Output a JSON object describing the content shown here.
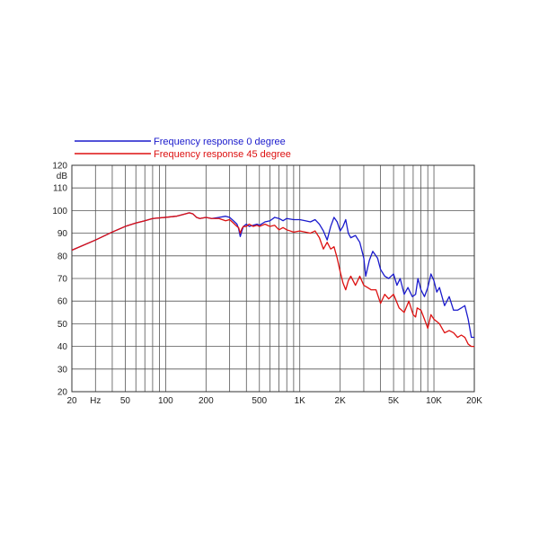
{
  "chart_data": {
    "type": "line",
    "ylabel": "dB",
    "xscale": "log",
    "xlim": [
      20,
      20000
    ],
    "ylim": [
      20,
      120
    ],
    "y_ticks": [
      20,
      30,
      40,
      50,
      60,
      70,
      80,
      90,
      100,
      110,
      120
    ],
    "x_tick_labels": [
      {
        "value": 20,
        "label": "20"
      },
      {
        "value": 30,
        "label": "Hz"
      },
      {
        "value": 50,
        "label": "50"
      },
      {
        "value": 100,
        "label": "100"
      },
      {
        "value": 200,
        "label": "200"
      },
      {
        "value": 500,
        "label": "500"
      },
      {
        "value": 1000,
        "label": "1K"
      },
      {
        "value": 2000,
        "label": "2K"
      },
      {
        "value": 5000,
        "label": "5K"
      },
      {
        "value": 10000,
        "label": "10K"
      },
      {
        "value": 20000,
        "label": "20K"
      }
    ],
    "grid": true,
    "legend_position": "top-left",
    "series": [
      {
        "name": "Frequency response 0 degree",
        "color": "#1a1acc",
        "points": [
          [
            20,
            82.5
          ],
          [
            30,
            87
          ],
          [
            40,
            90.5
          ],
          [
            50,
            93
          ],
          [
            60,
            94.5
          ],
          [
            70,
            95.5
          ],
          [
            80,
            96.5
          ],
          [
            100,
            97
          ],
          [
            120,
            97.5
          ],
          [
            140,
            98.5
          ],
          [
            150,
            99
          ],
          [
            160,
            98.5
          ],
          [
            170,
            97
          ],
          [
            180,
            96.5
          ],
          [
            200,
            97
          ],
          [
            220,
            96.5
          ],
          [
            250,
            97
          ],
          [
            280,
            97.5
          ],
          [
            300,
            97
          ],
          [
            320,
            95.5
          ],
          [
            340,
            94
          ],
          [
            350,
            92
          ],
          [
            360,
            88.5
          ],
          [
            370,
            91
          ],
          [
            380,
            93
          ],
          [
            400,
            94
          ],
          [
            420,
            93
          ],
          [
            450,
            93.5
          ],
          [
            480,
            94
          ],
          [
            500,
            93.5
          ],
          [
            550,
            95
          ],
          [
            600,
            95.5
          ],
          [
            650,
            97
          ],
          [
            700,
            96.5
          ],
          [
            750,
            95.5
          ],
          [
            800,
            96.5
          ],
          [
            900,
            96
          ],
          [
            1000,
            96
          ],
          [
            1100,
            95.5
          ],
          [
            1200,
            95
          ],
          [
            1300,
            96
          ],
          [
            1400,
            94
          ],
          [
            1500,
            91
          ],
          [
            1600,
            87
          ],
          [
            1700,
            93
          ],
          [
            1800,
            97
          ],
          [
            1900,
            95
          ],
          [
            2000,
            91
          ],
          [
            2100,
            93
          ],
          [
            2200,
            96
          ],
          [
            2300,
            90
          ],
          [
            2400,
            88
          ],
          [
            2600,
            89
          ],
          [
            2800,
            86
          ],
          [
            3000,
            79
          ],
          [
            3100,
            71
          ],
          [
            3300,
            78
          ],
          [
            3500,
            82
          ],
          [
            3800,
            79
          ],
          [
            4000,
            74
          ],
          [
            4300,
            71
          ],
          [
            4600,
            70
          ],
          [
            5000,
            72
          ],
          [
            5300,
            67
          ],
          [
            5600,
            70
          ],
          [
            6000,
            63
          ],
          [
            6400,
            66
          ],
          [
            6900,
            62
          ],
          [
            7300,
            63
          ],
          [
            7600,
            70
          ],
          [
            8000,
            65
          ],
          [
            8500,
            62
          ],
          [
            9000,
            66
          ],
          [
            9500,
            72
          ],
          [
            10000,
            69
          ],
          [
            10500,
            64
          ],
          [
            11000,
            66
          ],
          [
            12000,
            58
          ],
          [
            13000,
            62
          ],
          [
            14000,
            56
          ],
          [
            15000,
            56
          ],
          [
            16000,
            57
          ],
          [
            17000,
            58
          ],
          [
            18000,
            52
          ],
          [
            19000,
            44
          ],
          [
            20000,
            44
          ]
        ]
      },
      {
        "name": "Frequency response 45 degree",
        "color": "#dd1111",
        "points": [
          [
            20,
            82.5
          ],
          [
            30,
            87
          ],
          [
            40,
            90.5
          ],
          [
            50,
            93
          ],
          [
            60,
            94.5
          ],
          [
            70,
            95.5
          ],
          [
            80,
            96.5
          ],
          [
            100,
            97
          ],
          [
            120,
            97.5
          ],
          [
            140,
            98.5
          ],
          [
            150,
            99
          ],
          [
            160,
            98.5
          ],
          [
            170,
            97
          ],
          [
            180,
            96.5
          ],
          [
            200,
            97
          ],
          [
            220,
            96.5
          ],
          [
            250,
            96.5
          ],
          [
            280,
            95.5
          ],
          [
            300,
            96
          ],
          [
            320,
            94.5
          ],
          [
            340,
            93
          ],
          [
            350,
            92.5
          ],
          [
            360,
            90
          ],
          [
            370,
            92
          ],
          [
            380,
            93
          ],
          [
            400,
            93
          ],
          [
            420,
            94
          ],
          [
            450,
            93
          ],
          [
            480,
            93.5
          ],
          [
            500,
            93
          ],
          [
            550,
            94
          ],
          [
            600,
            93
          ],
          [
            650,
            93.5
          ],
          [
            700,
            91.5
          ],
          [
            750,
            92.5
          ],
          [
            800,
            91.5
          ],
          [
            900,
            90.5
          ],
          [
            1000,
            91
          ],
          [
            1100,
            90.5
          ],
          [
            1200,
            90
          ],
          [
            1300,
            91
          ],
          [
            1400,
            88
          ],
          [
            1500,
            83
          ],
          [
            1600,
            86
          ],
          [
            1700,
            83
          ],
          [
            1800,
            84
          ],
          [
            1900,
            79
          ],
          [
            2000,
            73
          ],
          [
            2100,
            68
          ],
          [
            2200,
            65
          ],
          [
            2300,
            69
          ],
          [
            2400,
            71
          ],
          [
            2600,
            67
          ],
          [
            2800,
            71
          ],
          [
            3000,
            67
          ],
          [
            3200,
            66
          ],
          [
            3400,
            65
          ],
          [
            3700,
            65
          ],
          [
            4000,
            59
          ],
          [
            4300,
            63
          ],
          [
            4600,
            61
          ],
          [
            5000,
            63
          ],
          [
            5500,
            57
          ],
          [
            6000,
            55
          ],
          [
            6500,
            60
          ],
          [
            7000,
            54
          ],
          [
            7300,
            53
          ],
          [
            7500,
            57
          ],
          [
            8000,
            56
          ],
          [
            8500,
            52
          ],
          [
            9000,
            48
          ],
          [
            9500,
            54
          ],
          [
            10000,
            52
          ],
          [
            11000,
            50
          ],
          [
            12000,
            46
          ],
          [
            13000,
            47
          ],
          [
            14000,
            46
          ],
          [
            15000,
            44
          ],
          [
            16000,
            45
          ],
          [
            17000,
            44
          ],
          [
            18000,
            41
          ],
          [
            19000,
            40
          ],
          [
            20000,
            40
          ]
        ]
      }
    ]
  }
}
